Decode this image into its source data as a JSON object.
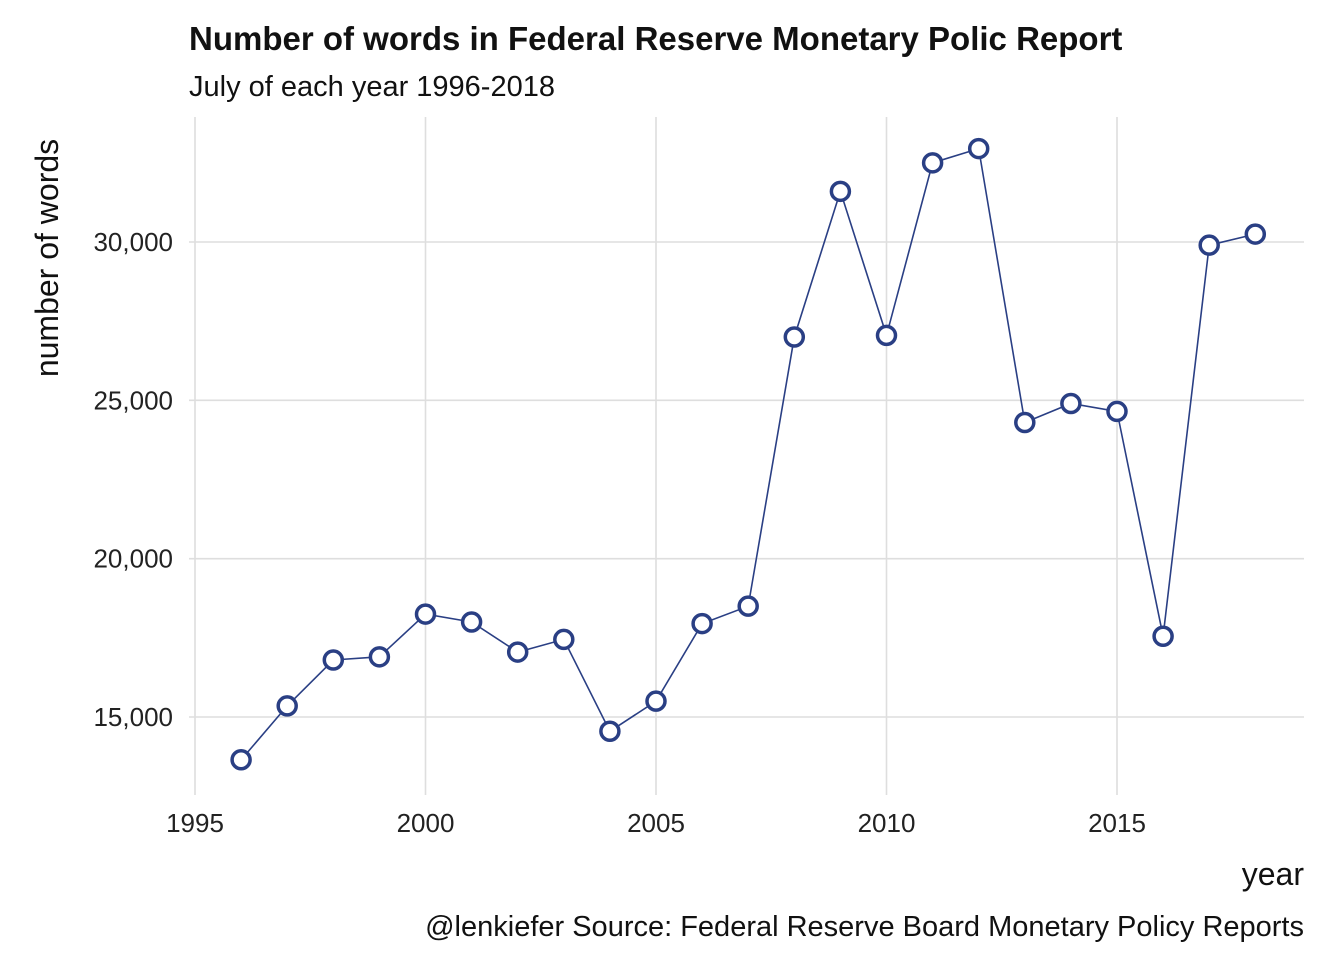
{
  "chart_data": {
    "type": "line",
    "title": "Number of words in Federal Reserve Monetary Polic Report",
    "subtitle": "July of each year 1996-2018",
    "xlabel": "year",
    "ylabel": "number of words",
    "caption": "@lenkiefer Source: Federal Reserve Board Monetary Policy Reports",
    "xlim": [
      1995,
      2019
    ],
    "ylim": [
      13000,
      34000
    ],
    "xticks": [
      1995,
      2000,
      2005,
      2010,
      2015
    ],
    "xtick_labels": [
      "1995",
      "2000",
      "2005",
      "2010",
      "2015"
    ],
    "yticks": [
      15000,
      20000,
      25000,
      30000
    ],
    "ytick_labels": [
      "15,000",
      "20,000",
      "25,000",
      "30,000"
    ],
    "grid": true,
    "legend": "none",
    "colors": {
      "line": "#2a3f84",
      "marker_fill": "#ffffff",
      "grid": "#dedede"
    },
    "series": [
      {
        "x": [
          1996,
          1997,
          1998,
          1999,
          2000,
          2001,
          2002,
          2003,
          2004,
          2005,
          2006,
          2007,
          2008,
          2009,
          2010,
          2011,
          2012,
          2013,
          2014,
          2015,
          2016,
          2017,
          2018
        ],
        "values": [
          13650,
          15350,
          16800,
          16900,
          18250,
          18000,
          17050,
          17450,
          14550,
          15500,
          17950,
          18500,
          27000,
          31600,
          27050,
          32500,
          32950,
          24300,
          24900,
          24650,
          17550,
          29900,
          30250
        ]
      }
    ]
  }
}
